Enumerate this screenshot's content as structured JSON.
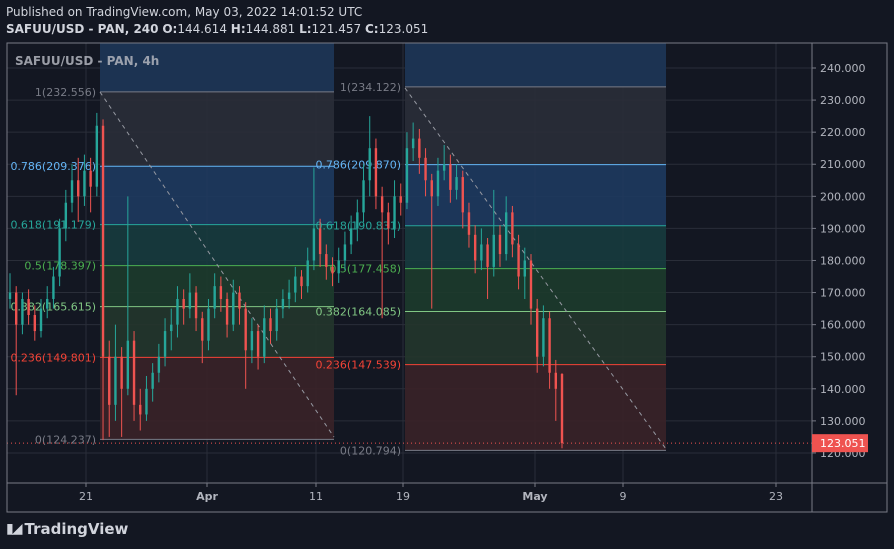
{
  "header": {
    "published": "Published on TradingView.com, May 03, 2022 14:01:52 UTC",
    "symbol": "SAFUU/USD - PAN, 240",
    "o_label": "O:",
    "o": "144.614",
    "h_label": "H:",
    "h": "144.881",
    "l_label": "L:",
    "l": "121.457",
    "c_label": "C:",
    "c": "123.051"
  },
  "watermark": "SAFUU/USD - PAN, 4h",
  "colors": {
    "up": "#26a69a",
    "down": "#ef5350",
    "background": "#131722",
    "last_price": "#ef5350"
  },
  "price_axis": {
    "ticks": [
      "240.000",
      "230.000",
      "220.000",
      "210.000",
      "200.000",
      "190.000",
      "180.000",
      "170.000",
      "160.000",
      "150.000",
      "140.000",
      "130.000",
      "120.000"
    ],
    "last_price": "123.051"
  },
  "time_axis": {
    "ticks": [
      "21",
      "Apr",
      "11",
      "19",
      "May",
      "9",
      "23"
    ]
  },
  "fib_retracements": [
    {
      "levels": [
        {
          "level": 1,
          "label": "1(232.556)",
          "price": 232.556,
          "color": "#787b86"
        },
        {
          "level": 0.786,
          "label": "0.786(209.376)",
          "price": 209.376,
          "color": "#64b5f6"
        },
        {
          "level": 0.618,
          "label": "0.618(191.179)",
          "price": 191.179,
          "color": "#26a69a"
        },
        {
          "level": 0.5,
          "label": "0.5(178.397)",
          "price": 178.397,
          "color": "#4caf50"
        },
        {
          "level": 0.382,
          "label": "0.382(165.615)",
          "price": 165.615,
          "color": "#81c784"
        },
        {
          "level": 0.236,
          "label": "0.236(149.801)",
          "price": 149.801,
          "color": "#f44336"
        },
        {
          "level": 0,
          "label": "0(124.237)",
          "price": 124.237,
          "color": "#787b86"
        }
      ]
    },
    {
      "levels": [
        {
          "level": 1,
          "label": "1(234.122)",
          "price": 234.122,
          "color": "#787b86"
        },
        {
          "level": 0.786,
          "label": "0.786(209.870)",
          "price": 209.87,
          "color": "#64b5f6"
        },
        {
          "level": 0.618,
          "label": "0.618(190.831)",
          "price": 190.831,
          "color": "#26a69a"
        },
        {
          "level": 0.5,
          "label": "0.5(177.458)",
          "price": 177.458,
          "color": "#4caf50"
        },
        {
          "level": 0.382,
          "label": "0.382(164.085)",
          "price": 164.085,
          "color": "#81c784"
        },
        {
          "level": 0.236,
          "label": "0.236(147.539)",
          "price": 147.539,
          "color": "#f44336"
        },
        {
          "level": 0,
          "label": "0(120.794)",
          "price": 120.794,
          "color": "#787b86"
        }
      ]
    }
  ],
  "candles": [
    [
      168,
      176,
      165,
      170
    ],
    [
      170,
      172,
      138,
      160
    ],
    [
      160,
      170,
      157,
      168
    ],
    [
      168,
      171,
      160,
      163
    ],
    [
      163,
      166,
      155,
      158
    ],
    [
      158,
      168,
      156,
      165
    ],
    [
      165,
      172,
      162,
      168
    ],
    [
      168,
      178,
      165,
      175
    ],
    [
      175,
      193,
      172,
      190
    ],
    [
      190,
      202,
      186,
      198
    ],
    [
      198,
      210,
      195,
      205
    ],
    [
      205,
      212,
      192,
      200
    ],
    [
      200,
      213,
      197,
      208
    ],
    [
      208,
      212,
      195,
      203
    ],
    [
      203,
      226,
      200,
      222
    ],
    [
      222,
      224,
      124,
      150
    ],
    [
      150,
      155,
      125,
      135
    ],
    [
      135,
      160,
      130,
      150
    ],
    [
      150,
      153,
      125,
      140
    ],
    [
      140,
      200,
      138,
      155
    ],
    [
      155,
      158,
      130,
      135
    ],
    [
      135,
      140,
      127,
      132
    ],
    [
      132,
      144,
      130,
      140
    ],
    [
      140,
      148,
      136,
      145
    ],
    [
      145,
      154,
      142,
      150
    ],
    [
      150,
      162,
      147,
      158
    ],
    [
      158,
      165,
      152,
      160
    ],
    [
      160,
      172,
      156,
      168
    ],
    [
      168,
      171,
      160,
      165
    ],
    [
      165,
      176,
      162,
      170
    ],
    [
      170,
      172,
      158,
      162
    ],
    [
      162,
      164,
      148,
      155
    ],
    [
      155,
      168,
      152,
      165
    ],
    [
      165,
      176,
      162,
      172
    ],
    [
      172,
      175,
      164,
      168
    ],
    [
      168,
      170,
      156,
      160
    ],
    [
      160,
      174,
      158,
      170
    ],
    [
      170,
      172,
      160,
      165
    ],
    [
      165,
      167,
      140,
      152
    ],
    [
      152,
      162,
      148,
      158
    ],
    [
      158,
      160,
      146,
      150
    ],
    [
      150,
      166,
      148,
      162
    ],
    [
      162,
      165,
      154,
      158
    ],
    [
      158,
      168,
      155,
      165
    ],
    [
      165,
      171,
      162,
      168
    ],
    [
      168,
      174,
      165,
      170
    ],
    [
      170,
      178,
      167,
      175
    ],
    [
      175,
      177,
      168,
      172
    ],
    [
      172,
      184,
      170,
      180
    ],
    [
      180,
      209,
      177,
      190
    ],
    [
      190,
      193,
      178,
      182
    ],
    [
      182,
      185,
      174,
      178
    ],
    [
      178,
      181,
      172,
      176
    ],
    [
      176,
      184,
      173,
      180
    ],
    [
      180,
      189,
      177,
      185
    ],
    [
      185,
      194,
      182,
      190
    ],
    [
      190,
      199,
      186,
      195
    ],
    [
      195,
      210,
      192,
      205
    ],
    [
      205,
      225,
      200,
      215
    ],
    [
      215,
      218,
      196,
      200
    ],
    [
      200,
      203,
      162,
      195
    ],
    [
      195,
      198,
      185,
      190
    ],
    [
      190,
      205,
      187,
      200
    ],
    [
      200,
      204,
      194,
      198
    ],
    [
      198,
      220,
      196,
      215
    ],
    [
      215,
      223,
      211,
      218
    ],
    [
      218,
      221,
      207,
      212
    ],
    [
      212,
      215,
      200,
      205
    ],
    [
      205,
      207,
      165,
      200
    ],
    [
      200,
      212,
      197,
      208
    ],
    [
      208,
      216,
      205,
      210
    ],
    [
      210,
      213,
      198,
      202
    ],
    [
      202,
      210,
      199,
      206
    ],
    [
      206,
      208,
      190,
      195
    ],
    [
      195,
      198,
      184,
      188
    ],
    [
      188,
      191,
      176,
      180
    ],
    [
      180,
      190,
      177,
      185
    ],
    [
      185,
      187,
      168,
      178
    ],
    [
      178,
      202,
      175,
      188
    ],
    [
      188,
      191,
      178,
      182
    ],
    [
      182,
      200,
      180,
      195
    ],
    [
      195,
      197,
      181,
      185
    ],
    [
      185,
      188,
      171,
      175
    ],
    [
      175,
      184,
      168,
      180
    ],
    [
      180,
      182,
      160,
      165
    ],
    [
      165,
      168,
      145,
      150
    ],
    [
      150,
      166,
      147,
      162
    ],
    [
      162,
      164,
      140,
      145
    ],
    [
      145,
      149,
      130,
      140
    ],
    [
      144.614,
      144.881,
      121.457,
      123.051
    ]
  ],
  "branding": {
    "logo_text": "TradingView"
  }
}
